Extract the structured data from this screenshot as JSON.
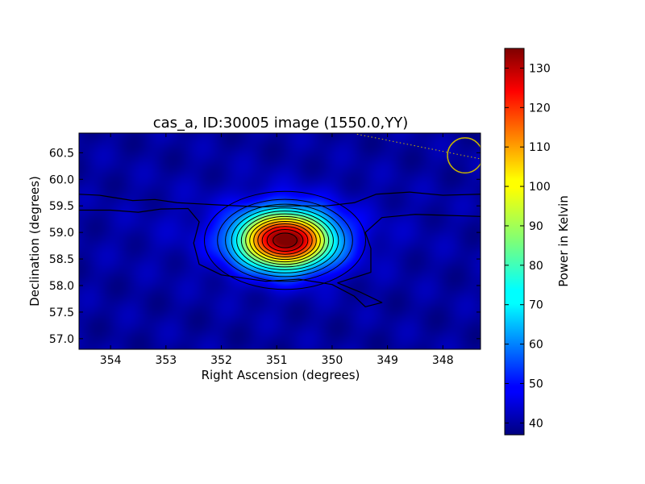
{
  "chart_data": {
    "type": "heatmap",
    "title": "cas_a, ID:30005 image (1550.0,YY)",
    "xlabel": "Right Ascension (degrees)",
    "ylabel": "Declination (degrees)",
    "x_reversed": true,
    "xlim": [
      354.57,
      347.32
    ],
    "ylim": [
      56.8,
      60.87
    ],
    "x_ticks": [
      354,
      353,
      352,
      351,
      350,
      349,
      348
    ],
    "y_ticks": [
      57.0,
      57.5,
      58.0,
      58.5,
      59.0,
      59.5,
      60.0,
      60.5
    ],
    "colormap": "jet",
    "colorbar": {
      "label": "Power in Kelvin",
      "range": [
        37,
        135
      ],
      "ticks": [
        40,
        50,
        60,
        70,
        80,
        90,
        100,
        110,
        120,
        130
      ]
    },
    "source": {
      "name": "cas_a",
      "ra": 350.85,
      "dec": 58.85,
      "peak_kelvin": 135,
      "background_kelvin": 40,
      "sigma_ra_deg": 0.6,
      "sigma_dec_deg": 0.38
    },
    "contour_levels": [
      45,
      52,
      59,
      66,
      73,
      80,
      87,
      94,
      101,
      108,
      115,
      122,
      129
    ],
    "beam": {
      "ra": 347.6,
      "dec": 60.45,
      "radius_deg": 0.33,
      "color": "#c8b400"
    },
    "dotted_path": [
      [
        349.55,
        60.85
      ],
      [
        347.3,
        60.38
      ]
    ]
  }
}
